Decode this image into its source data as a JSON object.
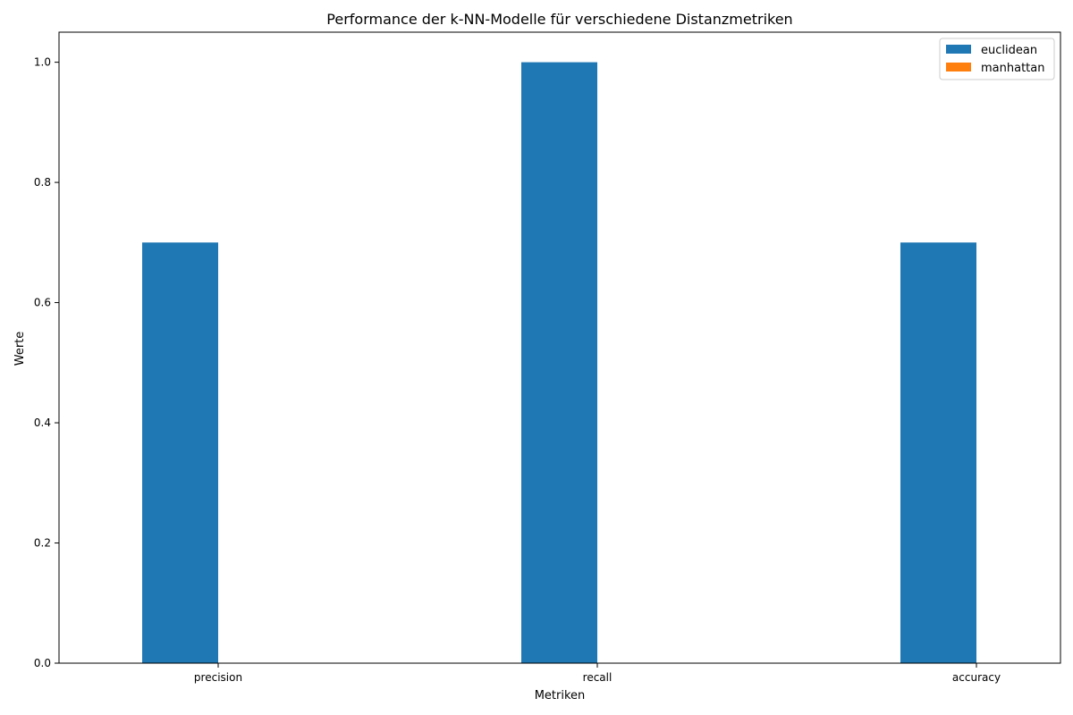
{
  "chart_data": {
    "type": "bar",
    "title": "Performance der k-NN-Modelle für verschiedene Distanzmetriken",
    "xlabel": "Metriken",
    "ylabel": "Werte",
    "categories": [
      "precision",
      "recall",
      "accuracy"
    ],
    "series": [
      {
        "name": "euclidean",
        "color": "#1f77b4",
        "values": [
          0.7,
          1.0,
          0.7
        ]
      },
      {
        "name": "manhattan",
        "color": "#ff7f0e",
        "values": [
          0.0,
          0.0,
          0.0
        ]
      }
    ],
    "ylim": [
      0,
      1.05
    ],
    "yticks": [
      "0.0",
      "0.2",
      "0.4",
      "0.6",
      "0.8",
      "1.0"
    ],
    "legend_position": "top-right",
    "grid": false
  }
}
